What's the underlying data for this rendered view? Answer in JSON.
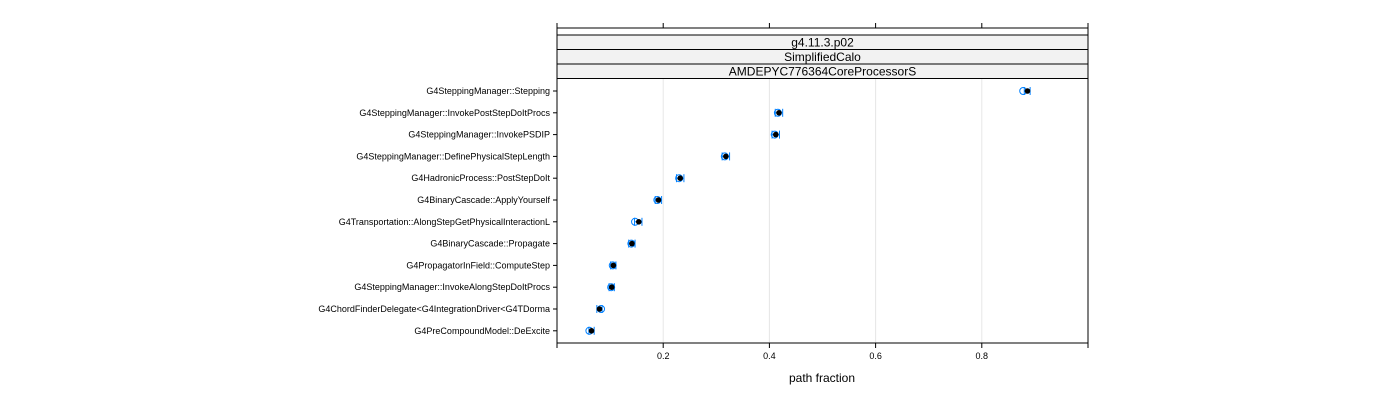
{
  "chart_data": {
    "type": "scatter",
    "strips": [
      "g4.11.3.p02",
      "SimplifiedCalo",
      "AMDEPYC776364CoreProcessorS"
    ],
    "xlabel": "path fraction",
    "ylabel": "",
    "xlim": [
      0.0,
      1.0
    ],
    "xticks": [
      0.2,
      0.4,
      0.6,
      0.8
    ],
    "xtick_labels": [
      "0.2",
      "0.4",
      "0.6",
      "0.8"
    ],
    "grid": true,
    "colors": {
      "point": "#000000",
      "interval": "#0080ff",
      "open_point": "#0080ff"
    },
    "categories": [
      "G4SteppingManager::Stepping",
      "G4SteppingManager::InvokePostStepDoItProcs",
      "G4SteppingManager::InvokePSDIP",
      "G4SteppingManager::DefinePhysicalStepLength",
      "G4HadronicProcess::PostStepDoIt",
      "G4BinaryCascade::ApplyYourself",
      "G4Transportation::AlongStepGetPhysicalInteractionL",
      "G4BinaryCascade::Propagate",
      "G4PropagatorInField::ComputeStep",
      "G4SteppingManager::InvokeAlongStepDoItProcs",
      "G4ChordFinderDelegate<G4IntegrationDriver<G4TDorma",
      "G4PreCompoundModel::DeExcite"
    ],
    "values": [
      0.886,
      0.418,
      0.412,
      0.318,
      0.232,
      0.191,
      0.154,
      0.141,
      0.106,
      0.103,
      0.08,
      0.065
    ],
    "lower": [
      0.88,
      0.411,
      0.405,
      0.311,
      0.225,
      0.185,
      0.146,
      0.135,
      0.101,
      0.098,
      0.075,
      0.06
    ],
    "upper": [
      0.891,
      0.425,
      0.419,
      0.325,
      0.239,
      0.197,
      0.16,
      0.147,
      0.111,
      0.108,
      0.085,
      0.07
    ],
    "open_points": [
      0.878,
      0.416,
      0.41,
      0.316,
      0.23,
      0.189,
      0.147,
      0.14,
      0.105,
      0.102,
      0.083,
      0.061
    ]
  }
}
